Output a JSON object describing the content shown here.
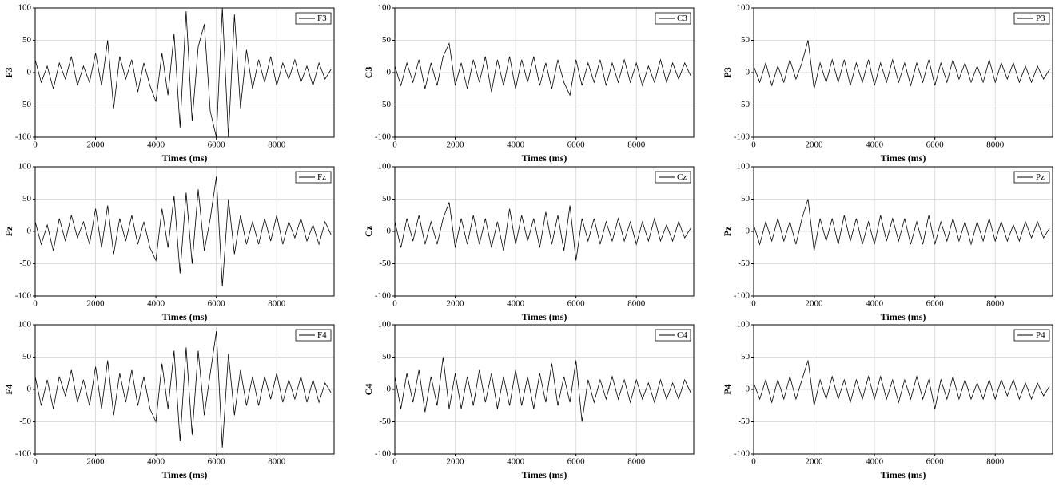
{
  "chart_data": [
    {
      "type": "line",
      "xlabel": "Times (ms)",
      "ylabel": "F3",
      "xlim": [
        0,
        9900
      ],
      "ylim": [
        -100,
        100
      ],
      "xticks": [
        0,
        2000,
        4000,
        6000,
        8000
      ],
      "yticks": [
        -100,
        -50,
        0,
        50,
        100
      ],
      "grid": true,
      "legend": "upper right",
      "x": [
        0,
        200,
        400,
        600,
        800,
        1000,
        1200,
        1400,
        1600,
        1800,
        2000,
        2200,
        2400,
        2600,
        2800,
        3000,
        3200,
        3400,
        3600,
        3800,
        4000,
        4200,
        4400,
        4600,
        4800,
        5000,
        5200,
        5400,
        5600,
        5800,
        6000,
        6200,
        6400,
        6600,
        6800,
        7000,
        7200,
        7400,
        7600,
        7800,
        8000,
        8200,
        8400,
        8600,
        8800,
        9000,
        9200,
        9400,
        9600,
        9800
      ],
      "series": [
        {
          "name": "F3",
          "color": "#000000",
          "values": [
            20,
            -15,
            10,
            -25,
            15,
            -10,
            25,
            -20,
            10,
            -15,
            30,
            -20,
            50,
            -55,
            25,
            -10,
            20,
            -30,
            15,
            -20,
            -45,
            30,
            -35,
            60,
            -85,
            95,
            -75,
            40,
            75,
            -60,
            -100,
            100,
            -100,
            90,
            -55,
            35,
            -25,
            20,
            -15,
            25,
            -20,
            15,
            -10,
            20,
            -15,
            10,
            -20,
            15,
            -10,
            5
          ]
        }
      ]
    },
    {
      "type": "line",
      "xlabel": "Times (ms)",
      "ylabel": "C3",
      "xlim": [
        0,
        9900
      ],
      "ylim": [
        -100,
        100
      ],
      "xticks": [
        0,
        2000,
        4000,
        6000,
        8000
      ],
      "yticks": [
        -100,
        -50,
        0,
        50,
        100
      ],
      "grid": true,
      "legend": "upper right",
      "x": [
        0,
        200,
        400,
        600,
        800,
        1000,
        1200,
        1400,
        1600,
        1800,
        2000,
        2200,
        2400,
        2600,
        2800,
        3000,
        3200,
        3400,
        3600,
        3800,
        4000,
        4200,
        4400,
        4600,
        4800,
        5000,
        5200,
        5400,
        5600,
        5800,
        6000,
        6200,
        6400,
        6600,
        6800,
        7000,
        7200,
        7400,
        7600,
        7800,
        8000,
        8200,
        8400,
        8600,
        8800,
        9000,
        9200,
        9400,
        9600,
        9800
      ],
      "series": [
        {
          "name": "C3",
          "color": "#000000",
          "values": [
            10,
            -20,
            15,
            -15,
            20,
            -25,
            15,
            -20,
            25,
            45,
            -20,
            15,
            -25,
            20,
            -15,
            25,
            -30,
            20,
            -20,
            25,
            -25,
            20,
            -15,
            25,
            -20,
            15,
            -25,
            20,
            -15,
            -35,
            20,
            -20,
            15,
            -15,
            20,
            -20,
            15,
            -15,
            20,
            -15,
            15,
            -20,
            10,
            -15,
            20,
            -15,
            15,
            -10,
            15,
            -5
          ]
        }
      ]
    },
    {
      "type": "line",
      "xlabel": "Times (ms)",
      "ylabel": "P3",
      "xlim": [
        0,
        9900
      ],
      "ylim": [
        -100,
        100
      ],
      "xticks": [
        0,
        2000,
        4000,
        6000,
        8000
      ],
      "yticks": [
        -100,
        -50,
        0,
        50,
        100
      ],
      "grid": true,
      "legend": "upper right",
      "x": [
        0,
        200,
        400,
        600,
        800,
        1000,
        1200,
        1400,
        1600,
        1800,
        2000,
        2200,
        2400,
        2600,
        2800,
        3000,
        3200,
        3400,
        3600,
        3800,
        4000,
        4200,
        4400,
        4600,
        4800,
        5000,
        5200,
        5400,
        5600,
        5800,
        6000,
        6200,
        6400,
        6600,
        6800,
        7000,
        7200,
        7400,
        7600,
        7800,
        8000,
        8200,
        8400,
        8600,
        8800,
        9000,
        9200,
        9400,
        9600,
        9800
      ],
      "series": [
        {
          "name": "P3",
          "color": "#000000",
          "values": [
            10,
            -15,
            15,
            -20,
            10,
            -15,
            20,
            -10,
            15,
            50,
            -25,
            15,
            -15,
            20,
            -15,
            20,
            -20,
            15,
            -15,
            20,
            -20,
            15,
            -15,
            20,
            -15,
            15,
            -20,
            15,
            -15,
            20,
            -20,
            15,
            -15,
            20,
            -10,
            15,
            -15,
            10,
            -15,
            20,
            -15,
            15,
            -10,
            15,
            -15,
            10,
            -15,
            10,
            -10,
            5
          ]
        }
      ]
    },
    {
      "type": "line",
      "xlabel": "Times (ms)",
      "ylabel": "Fz",
      "xlim": [
        0,
        9900
      ],
      "ylim": [
        -100,
        100
      ],
      "xticks": [
        0,
        2000,
        4000,
        6000,
        8000
      ],
      "yticks": [
        -100,
        -50,
        0,
        50,
        100
      ],
      "grid": true,
      "legend": "upper right",
      "x": [
        0,
        200,
        400,
        600,
        800,
        1000,
        1200,
        1400,
        1600,
        1800,
        2000,
        2200,
        2400,
        2600,
        2800,
        3000,
        3200,
        3400,
        3600,
        3800,
        4000,
        4200,
        4400,
        4600,
        4800,
        5000,
        5200,
        5400,
        5600,
        5800,
        6000,
        6200,
        6400,
        6600,
        6800,
        7000,
        7200,
        7400,
        7600,
        7800,
        8000,
        8200,
        8400,
        8600,
        8800,
        9000,
        9200,
        9400,
        9600,
        9800
      ],
      "series": [
        {
          "name": "Fz",
          "color": "#000000",
          "values": [
            15,
            -20,
            10,
            -30,
            20,
            -15,
            25,
            -10,
            15,
            -20,
            35,
            -25,
            40,
            -35,
            20,
            -15,
            25,
            -20,
            15,
            -25,
            -45,
            35,
            -25,
            55,
            -65,
            60,
            -50,
            65,
            -30,
            20,
            85,
            -85,
            50,
            -35,
            25,
            -20,
            15,
            -20,
            20,
            -15,
            25,
            -20,
            15,
            -10,
            20,
            -15,
            10,
            -20,
            15,
            -5
          ]
        }
      ]
    },
    {
      "type": "line",
      "xlabel": "Times (ms)",
      "ylabel": "Cz",
      "xlim": [
        0,
        9900
      ],
      "ylim": [
        -100,
        100
      ],
      "xticks": [
        0,
        2000,
        4000,
        6000,
        8000
      ],
      "yticks": [
        -100,
        -50,
        0,
        50,
        100
      ],
      "grid": true,
      "legend": "upper right",
      "x": [
        0,
        200,
        400,
        600,
        800,
        1000,
        1200,
        1400,
        1600,
        1800,
        2000,
        2200,
        2400,
        2600,
        2800,
        3000,
        3200,
        3400,
        3600,
        3800,
        4000,
        4200,
        4400,
        4600,
        4800,
        5000,
        5200,
        5400,
        5600,
        5800,
        6000,
        6200,
        6400,
        6600,
        6800,
        7000,
        7200,
        7400,
        7600,
        7800,
        8000,
        8200,
        8400,
        8600,
        8800,
        9000,
        9200,
        9400,
        9600,
        9800
      ],
      "series": [
        {
          "name": "Cz",
          "color": "#000000",
          "values": [
            15,
            -25,
            20,
            -15,
            25,
            -20,
            15,
            -20,
            20,
            45,
            -25,
            20,
            -20,
            25,
            -20,
            20,
            -25,
            15,
            -30,
            35,
            -20,
            25,
            -15,
            20,
            -25,
            30,
            -20,
            25,
            -30,
            40,
            -45,
            20,
            -15,
            20,
            -20,
            15,
            -15,
            20,
            -15,
            15,
            -20,
            15,
            -15,
            20,
            -15,
            10,
            -15,
            15,
            -10,
            5
          ]
        }
      ]
    },
    {
      "type": "line",
      "xlabel": "Times (ms)",
      "ylabel": "Pz",
      "xlim": [
        0,
        9900
      ],
      "ylim": [
        -100,
        100
      ],
      "xticks": [
        0,
        2000,
        4000,
        6000,
        8000
      ],
      "yticks": [
        -100,
        -50,
        0,
        50,
        100
      ],
      "grid": true,
      "legend": "upper right",
      "x": [
        0,
        200,
        400,
        600,
        800,
        1000,
        1200,
        1400,
        1600,
        1800,
        2000,
        2200,
        2400,
        2600,
        2800,
        3000,
        3200,
        3400,
        3600,
        3800,
        4000,
        4200,
        4400,
        4600,
        4800,
        5000,
        5200,
        5400,
        5600,
        5800,
        6000,
        6200,
        6400,
        6600,
        6800,
        7000,
        7200,
        7400,
        7600,
        7800,
        8000,
        8200,
        8400,
        8600,
        8800,
        9000,
        9200,
        9400,
        9600,
        9800
      ],
      "series": [
        {
          "name": "Pz",
          "color": "#000000",
          "values": [
            10,
            -20,
            15,
            -15,
            20,
            -15,
            15,
            -20,
            20,
            50,
            -30,
            20,
            -15,
            20,
            -20,
            25,
            -15,
            20,
            -20,
            15,
            -20,
            25,
            -15,
            20,
            -15,
            20,
            -20,
            15,
            -20,
            25,
            -20,
            15,
            -15,
            20,
            -15,
            15,
            -20,
            15,
            -15,
            20,
            -15,
            15,
            -15,
            10,
            -15,
            15,
            -10,
            15,
            -10,
            5
          ]
        }
      ]
    },
    {
      "type": "line",
      "xlabel": "Times (ms)",
      "ylabel": "F4",
      "xlim": [
        0,
        9900
      ],
      "ylim": [
        -100,
        100
      ],
      "xticks": [
        0,
        2000,
        4000,
        6000,
        8000
      ],
      "yticks": [
        -100,
        -50,
        0,
        50,
        100
      ],
      "grid": true,
      "legend": "upper right",
      "x": [
        0,
        200,
        400,
        600,
        800,
        1000,
        1200,
        1400,
        1600,
        1800,
        2000,
        2200,
        2400,
        2600,
        2800,
        3000,
        3200,
        3400,
        3600,
        3800,
        4000,
        4200,
        4400,
        4600,
        4800,
        5000,
        5200,
        5400,
        5600,
        5800,
        6000,
        6200,
        6400,
        6600,
        6800,
        7000,
        7200,
        7400,
        7600,
        7800,
        8000,
        8200,
        8400,
        8600,
        8800,
        9000,
        9200,
        9400,
        9600,
        9800
      ],
      "series": [
        {
          "name": "F4",
          "color": "#000000",
          "values": [
            20,
            -25,
            15,
            -30,
            20,
            -10,
            30,
            -20,
            15,
            -25,
            35,
            -30,
            45,
            -40,
            25,
            -20,
            30,
            -25,
            20,
            -30,
            -50,
            40,
            -30,
            60,
            -80,
            65,
            -70,
            60,
            -40,
            25,
            90,
            -90,
            55,
            -40,
            30,
            -25,
            20,
            -25,
            20,
            -15,
            25,
            -20,
            15,
            -15,
            20,
            -20,
            15,
            -20,
            10,
            -5
          ]
        }
      ]
    },
    {
      "type": "line",
      "xlabel": "Times (ms)",
      "ylabel": "C4",
      "xlim": [
        0,
        9900
      ],
      "ylim": [
        -100,
        100
      ],
      "xticks": [
        0,
        2000,
        4000,
        6000,
        8000
      ],
      "yticks": [
        -100,
        -50,
        0,
        50,
        100
      ],
      "grid": true,
      "legend": "upper right",
      "x": [
        0,
        200,
        400,
        600,
        800,
        1000,
        1200,
        1400,
        1600,
        1800,
        2000,
        2200,
        2400,
        2600,
        2800,
        3000,
        3200,
        3400,
        3600,
        3800,
        4000,
        4200,
        4400,
        4600,
        4800,
        5000,
        5200,
        5400,
        5600,
        5800,
        6000,
        6200,
        6400,
        6600,
        6800,
        7000,
        7200,
        7400,
        7600,
        7800,
        8000,
        8200,
        8400,
        8600,
        8800,
        9000,
        9200,
        9400,
        9600,
        9800
      ],
      "series": [
        {
          "name": "C4",
          "color": "#000000",
          "values": [
            20,
            -30,
            25,
            -20,
            30,
            -35,
            20,
            -25,
            50,
            -30,
            25,
            -30,
            20,
            -25,
            30,
            -20,
            25,
            -30,
            20,
            -25,
            30,
            -25,
            20,
            -30,
            25,
            -20,
            40,
            -25,
            20,
            -20,
            45,
            -50,
            15,
            -20,
            15,
            -15,
            20,
            -15,
            15,
            -20,
            15,
            -15,
            10,
            -20,
            15,
            -15,
            10,
            -15,
            15,
            -5
          ]
        }
      ]
    },
    {
      "type": "line",
      "xlabel": "Times (ms)",
      "ylabel": "P4",
      "xlim": [
        0,
        9900
      ],
      "ylim": [
        -100,
        100
      ],
      "xticks": [
        0,
        2000,
        4000,
        6000,
        8000
      ],
      "yticks": [
        -100,
        -50,
        0,
        50,
        100
      ],
      "grid": true,
      "legend": "upper right",
      "x": [
        0,
        200,
        400,
        600,
        800,
        1000,
        1200,
        1400,
        1600,
        1800,
        2000,
        2200,
        2400,
        2600,
        2800,
        3000,
        3200,
        3400,
        3600,
        3800,
        4000,
        4200,
        4400,
        4600,
        4800,
        5000,
        5200,
        5400,
        5600,
        5800,
        6000,
        6200,
        6400,
        6600,
        6800,
        7000,
        7200,
        7400,
        7600,
        7800,
        8000,
        8200,
        8400,
        8600,
        8800,
        9000,
        9200,
        9400,
        9600,
        9800
      ],
      "series": [
        {
          "name": "P4",
          "color": "#000000",
          "values": [
            10,
            -15,
            15,
            -20,
            15,
            -15,
            20,
            -15,
            15,
            45,
            -25,
            15,
            -15,
            20,
            -15,
            15,
            -20,
            15,
            -15,
            20,
            -15,
            20,
            -15,
            15,
            -20,
            15,
            -15,
            20,
            -15,
            15,
            -30,
            15,
            -15,
            20,
            -15,
            15,
            -15,
            10,
            -15,
            15,
            -15,
            15,
            -10,
            15,
            -15,
            10,
            -15,
            10,
            -10,
            5
          ]
        }
      ]
    }
  ]
}
